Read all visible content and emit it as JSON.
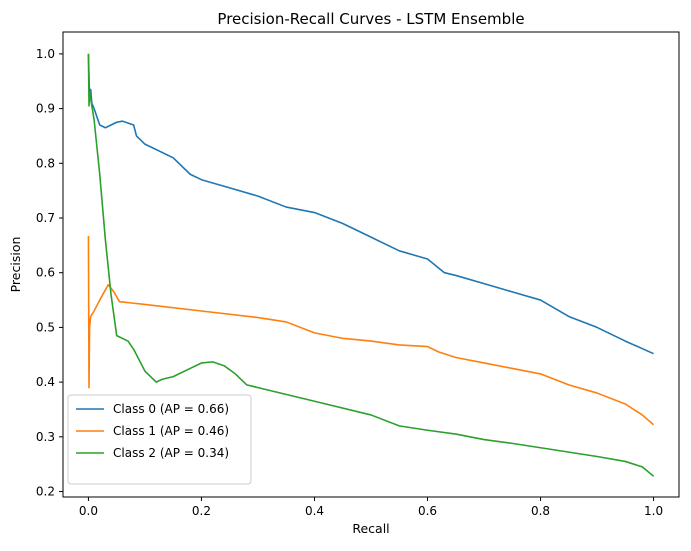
{
  "chart_data": {
    "type": "line",
    "title": "Precision-Recall Curves - LSTM Ensemble",
    "xlabel": "Recall",
    "ylabel": "Precision",
    "xlim": [
      -0.045,
      1.045
    ],
    "ylim": [
      0.19,
      1.04
    ],
    "xticks": [
      0.0,
      0.2,
      0.4,
      0.6,
      0.8,
      1.0
    ],
    "xtick_labels": [
      "0.0",
      "0.2",
      "0.4",
      "0.6",
      "0.8",
      "1.0"
    ],
    "yticks": [
      0.2,
      0.3,
      0.4,
      0.5,
      0.6,
      0.7,
      0.8,
      0.9,
      1.0
    ],
    "ytick_labels": [
      "0.2",
      "0.3",
      "0.4",
      "0.5",
      "0.6",
      "0.7",
      "0.8",
      "0.9",
      "1.0"
    ],
    "grid": false,
    "legend_position": "lower-left",
    "series": [
      {
        "name": "Class 0 (AP = 0.66)",
        "color": "#1f77b4",
        "points": [
          [
            0.0,
            1.0
          ],
          [
            0.002,
            0.92
          ],
          [
            0.004,
            0.935
          ],
          [
            0.006,
            0.91
          ],
          [
            0.01,
            0.9
          ],
          [
            0.02,
            0.87
          ],
          [
            0.03,
            0.865
          ],
          [
            0.04,
            0.87
          ],
          [
            0.05,
            0.875
          ],
          [
            0.06,
            0.877
          ],
          [
            0.08,
            0.87
          ],
          [
            0.085,
            0.85
          ],
          [
            0.1,
            0.835
          ],
          [
            0.15,
            0.81
          ],
          [
            0.18,
            0.78
          ],
          [
            0.2,
            0.77
          ],
          [
            0.25,
            0.755
          ],
          [
            0.3,
            0.74
          ],
          [
            0.35,
            0.72
          ],
          [
            0.4,
            0.71
          ],
          [
            0.45,
            0.69
          ],
          [
            0.5,
            0.665
          ],
          [
            0.55,
            0.64
          ],
          [
            0.6,
            0.625
          ],
          [
            0.63,
            0.6
          ],
          [
            0.65,
            0.595
          ],
          [
            0.7,
            0.58
          ],
          [
            0.75,
            0.565
          ],
          [
            0.8,
            0.55
          ],
          [
            0.85,
            0.52
          ],
          [
            0.9,
            0.5
          ],
          [
            0.95,
            0.475
          ],
          [
            1.0,
            0.452
          ]
        ]
      },
      {
        "name": "Class 1 (AP = 0.46)",
        "color": "#ff7f0e",
        "points": [
          [
            0.0,
            0.667
          ],
          [
            0.001,
            0.39
          ],
          [
            0.002,
            0.5
          ],
          [
            0.004,
            0.52
          ],
          [
            0.01,
            0.53
          ],
          [
            0.02,
            0.55
          ],
          [
            0.035,
            0.578
          ],
          [
            0.045,
            0.565
          ],
          [
            0.055,
            0.547
          ],
          [
            0.1,
            0.542
          ],
          [
            0.2,
            0.53
          ],
          [
            0.3,
            0.518
          ],
          [
            0.35,
            0.51
          ],
          [
            0.4,
            0.49
          ],
          [
            0.45,
            0.48
          ],
          [
            0.5,
            0.475
          ],
          [
            0.55,
            0.468
          ],
          [
            0.6,
            0.465
          ],
          [
            0.62,
            0.455
          ],
          [
            0.65,
            0.445
          ],
          [
            0.7,
            0.435
          ],
          [
            0.75,
            0.425
          ],
          [
            0.8,
            0.415
          ],
          [
            0.85,
            0.395
          ],
          [
            0.9,
            0.38
          ],
          [
            0.95,
            0.36
          ],
          [
            0.98,
            0.34
          ],
          [
            1.0,
            0.322
          ]
        ]
      },
      {
        "name": "Class 2 (AP = 0.34)",
        "color": "#2ca02c",
        "points": [
          [
            0.0,
            1.0
          ],
          [
            0.001,
            0.905
          ],
          [
            0.002,
            0.93
          ],
          [
            0.01,
            0.88
          ],
          [
            0.02,
            0.78
          ],
          [
            0.03,
            0.66
          ],
          [
            0.04,
            0.56
          ],
          [
            0.05,
            0.485
          ],
          [
            0.07,
            0.475
          ],
          [
            0.08,
            0.46
          ],
          [
            0.1,
            0.42
          ],
          [
            0.12,
            0.4
          ],
          [
            0.13,
            0.405
          ],
          [
            0.15,
            0.41
          ],
          [
            0.18,
            0.425
          ],
          [
            0.2,
            0.435
          ],
          [
            0.22,
            0.437
          ],
          [
            0.24,
            0.43
          ],
          [
            0.26,
            0.415
          ],
          [
            0.28,
            0.395
          ],
          [
            0.3,
            0.39
          ],
          [
            0.4,
            0.365
          ],
          [
            0.5,
            0.34
          ],
          [
            0.55,
            0.32
          ],
          [
            0.6,
            0.312
          ],
          [
            0.65,
            0.305
          ],
          [
            0.7,
            0.295
          ],
          [
            0.75,
            0.288
          ],
          [
            0.8,
            0.28
          ],
          [
            0.85,
            0.272
          ],
          [
            0.9,
            0.264
          ],
          [
            0.95,
            0.255
          ],
          [
            0.98,
            0.245
          ],
          [
            1.0,
            0.228
          ]
        ]
      }
    ]
  }
}
